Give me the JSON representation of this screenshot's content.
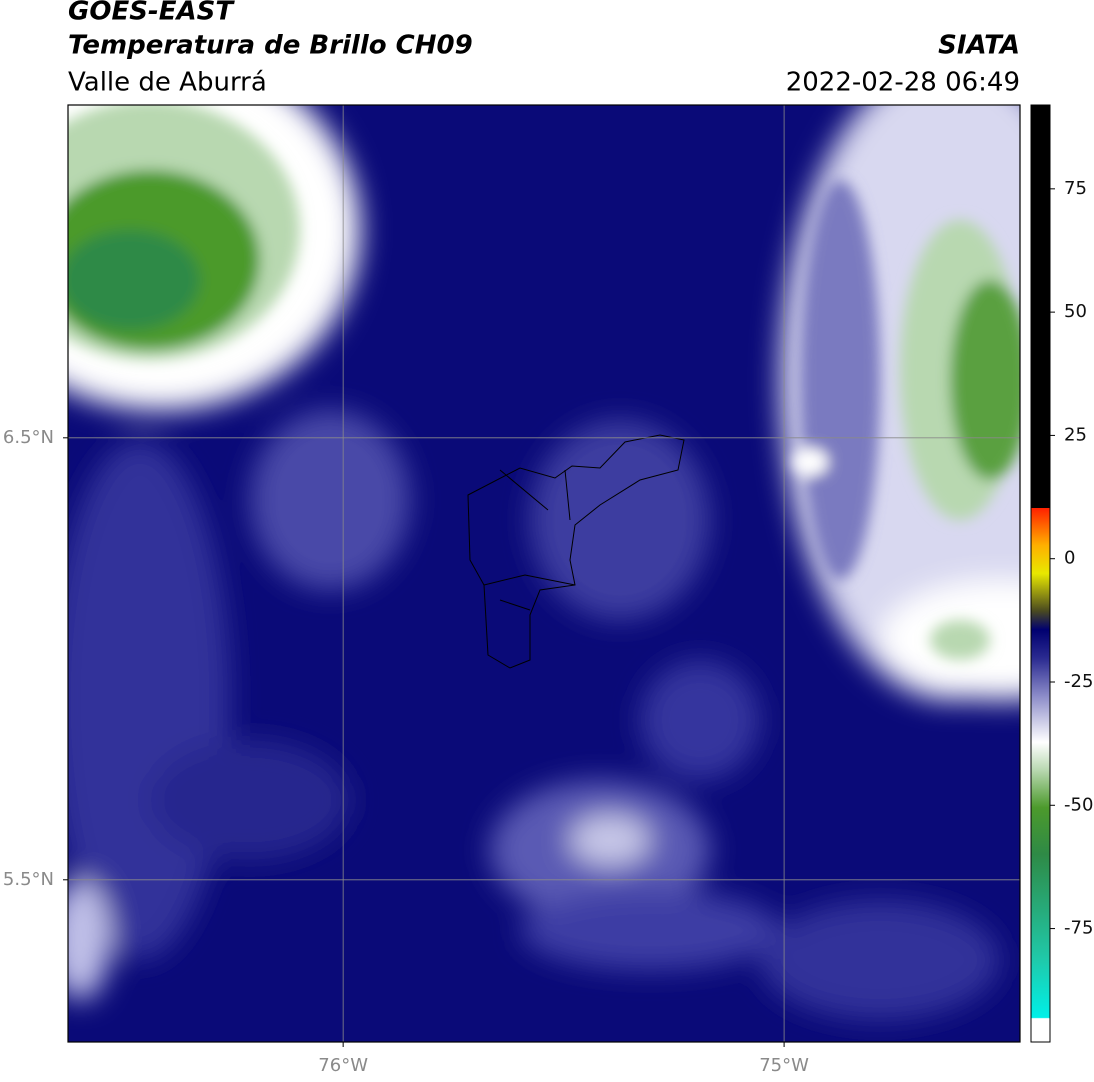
{
  "header": {
    "title": "GOES-EAST",
    "subtitle": "Temperatura de Brillo CH09",
    "region": "Valle de Aburrá",
    "source": "SIATA",
    "timestamp": "2022-02-28 06:49"
  },
  "map": {
    "xlim": [
      -76.624,
      -74.465
    ],
    "ylim": [
      5.133,
      7.253
    ],
    "xticks": [
      {
        "value": -76,
        "label": "76°W"
      },
      {
        "value": -75,
        "label": "75°W"
      }
    ],
    "yticks": [
      {
        "value": 5.5,
        "label": "5.5°N"
      },
      {
        "value": 6.5,
        "label": "6.5°N"
      }
    ]
  },
  "colorbar": {
    "lim": [
      -98,
      92
    ],
    "ticks": [
      -75,
      -50,
      -25,
      0,
      25,
      50,
      75
    ]
  }
}
